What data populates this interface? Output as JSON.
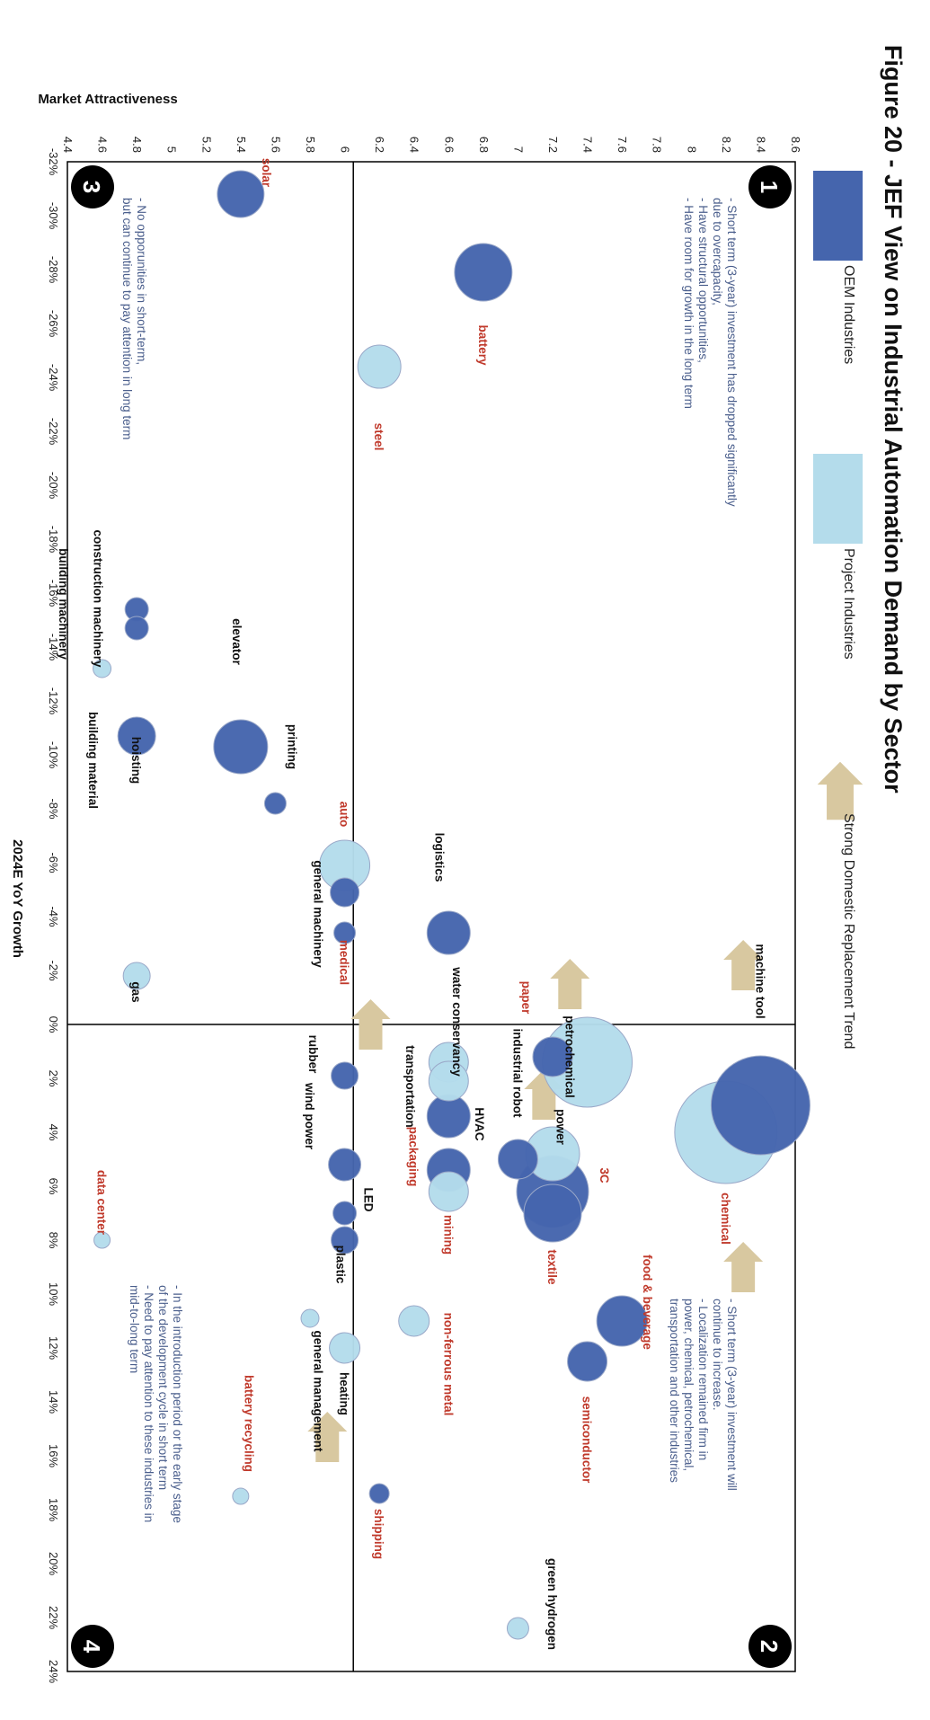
{
  "figure": {
    "title": "Figure 20 - JEF View on Industrial Automation Demand by Sector"
  },
  "legend": {
    "oem_label": "OEM Industries",
    "project_label": "Project Industries",
    "trend_label": "Strong Domestic Replacement Trend",
    "placement": "top"
  },
  "colors": {
    "oem": "#4565ad",
    "project": "#b4dceb",
    "red_label": "#c0392b",
    "note_text": "#4a5e8c",
    "arrow": "#d8c8a0"
  },
  "quadrants": [
    {
      "number": "1",
      "notes": [
        "- Short term (3-year) investment has dropped significantly",
        "due to overcapacity,",
        "- Have structural opportunities,",
        "- Have room for growth in the long term"
      ]
    },
    {
      "number": "2",
      "notes": [
        "- Short term (3-year) investment will",
        "continue to increase.",
        "- Localization remained firm in",
        "power, chemical, petrochemical,",
        "transportation and other industries"
      ]
    },
    {
      "number": "3",
      "notes": [
        "- No opporunities in short-term,",
        "but can continue to pay attention in long term"
      ]
    },
    {
      "number": "4",
      "notes": [
        "- In the introduction period or the early stage",
        "of the development cycle in short term",
        "-  Need to pay attention to these industries in",
        "mid-to-long term"
      ]
    }
  ],
  "chart_data": {
    "type": "scatter",
    "title": "Figure 20 - JEF View on Industrial Automation Demand by Sector",
    "xlabel": "2024E YoY Growth",
    "ylabel": "Market Attractiveness",
    "x_unit": "%",
    "xlim": [
      -32,
      24
    ],
    "ylim": [
      4.4,
      8.6
    ],
    "x_ticks": [
      "-32%",
      "-30%",
      "-28%",
      "-26%",
      "-24%",
      "-22%",
      "-20%",
      "-18%",
      "-16%",
      "-14%",
      "-12%",
      "-10%",
      "-8%",
      "-6%",
      "-4%",
      "-2%",
      "0%",
      "2%",
      "4%",
      "6%",
      "8%",
      "10%",
      "12%",
      "14%",
      "16%",
      "18%",
      "20%",
      "22%",
      "24%"
    ],
    "y_ticks": [
      "4.4",
      "4.6",
      "4.8",
      "5",
      "5.2",
      "5.4",
      "5.6",
      "5.8",
      "6",
      "6.2",
      "6.4",
      "6.6",
      "6.8",
      "7",
      "7.2",
      "7.4",
      "7.6",
      "7.8",
      "8",
      "8.2",
      "8.4",
      "8.6"
    ],
    "quadrant_dividers": {
      "x": 0,
      "y": 6.05
    },
    "grid": false,
    "series": [
      {
        "name": "OEM Industries",
        "color": "#4565ad",
        "points": [
          {
            "label": "solar",
            "x": -30.8,
            "y": 5.4,
            "r": 26,
            "emph": true,
            "lx": -31.6,
            "ly": 5.55
          },
          {
            "label": "battery",
            "x": -27.9,
            "y": 6.8,
            "r": 32,
            "emph": true,
            "lx": -25.2,
            "ly": 6.8
          },
          {
            "label": "construction machinery",
            "x": -15.4,
            "y": 4.8,
            "r": 13,
            "emph": false,
            "lx": -15.8,
            "ly": 4.58
          },
          {
            "label": "building machinery",
            "x": -14.7,
            "y": 4.8,
            "r": 13,
            "emph": false,
            "lx": -15.6,
            "ly": 4.38
          },
          {
            "label": "elevator",
            "x": -10.3,
            "y": 5.4,
            "r": 30,
            "emph": false,
            "lx": -14.2,
            "ly": 5.38
          },
          {
            "label": "hoisting",
            "x": -10.7,
            "y": 4.8,
            "r": 21,
            "emph": false,
            "lx": -9.8,
            "ly": 4.8
          },
          {
            "label": "printing",
            "x": -8.2,
            "y": 5.6,
            "r": 12,
            "emph": false,
            "lx": -10.3,
            "ly": 5.7
          },
          {
            "label": "general machinery",
            "x": -4.9,
            "y": 6.0,
            "r": 16,
            "emph": false,
            "lx": -4.1,
            "ly": 5.85
          },
          {
            "label": "",
            "x": -3.4,
            "y": 6.0,
            "r": 12,
            "emph": false,
            "lx": 0,
            "ly": 0
          },
          {
            "label": "logistics",
            "x": -3.4,
            "y": 6.6,
            "r": 24,
            "emph": false,
            "lx": -6.2,
            "ly": 6.55
          },
          {
            "label": "industrial robot",
            "x": 1.2,
            "y": 7.2,
            "r": 22,
            "emph": false,
            "lx": 1.8,
            "ly": 7.0
          },
          {
            "label": "rubber",
            "x": 1.9,
            "y": 6.0,
            "r": 15,
            "emph": false,
            "lx": 1.1,
            "ly": 5.82
          },
          {
            "label": "HVAC",
            "x": 3.4,
            "y": 6.6,
            "r": 24,
            "emph": false,
            "lx": 3.7,
            "ly": 6.78
          },
          {
            "label": "",
            "x": 5.0,
            "y": 7.0,
            "r": 22,
            "emph": false,
            "lx": 0,
            "ly": 0
          },
          {
            "label": "packaging",
            "x": 5.4,
            "y": 6.6,
            "r": 24,
            "emph": true,
            "lx": 4.9,
            "ly": 6.4
          },
          {
            "label": "wind power",
            "x": 5.2,
            "y": 6.0,
            "r": 18,
            "emph": false,
            "lx": 3.4,
            "ly": 5.8
          },
          {
            "label": "textile",
            "x": 7.0,
            "y": 7.2,
            "r": 32,
            "emph": true,
            "lx": 9.0,
            "ly": 7.2
          },
          {
            "label": "3C",
            "x": 6.2,
            "y": 7.2,
            "r": 40,
            "emph": true,
            "lx": 5.6,
            "ly": 7.5
          },
          {
            "label": "LED",
            "x": 7.0,
            "y": 6.0,
            "r": 13,
            "emph": false,
            "lx": 6.5,
            "ly": 6.14
          },
          {
            "label": "plastic",
            "x": 8.0,
            "y": 6.0,
            "r": 15,
            "emph": false,
            "lx": 8.9,
            "ly": 5.98
          },
          {
            "label": "chemical",
            "x": 3.0,
            "y": 8.4,
            "r": 55,
            "emph": true,
            "lx": 7.2,
            "ly": 8.2
          },
          {
            "label": "food & beverage",
            "x": 11.0,
            "y": 7.6,
            "r": 28,
            "emph": true,
            "lx": 10.3,
            "ly": 7.75
          },
          {
            "label": "semiconductor",
            "x": 12.5,
            "y": 7.4,
            "r": 22,
            "emph": true,
            "lx": 15.4,
            "ly": 7.4
          },
          {
            "label": "shipping",
            "x": 17.4,
            "y": 6.2,
            "r": 11,
            "emph": true,
            "lx": 18.9,
            "ly": 6.2
          }
        ]
      },
      {
        "name": "Project Industries",
        "color": "#b4dceb",
        "points": [
          {
            "label": "steel",
            "x": -24.4,
            "y": 6.2,
            "r": 24,
            "emph": true,
            "lx": -21.8,
            "ly": 6.2
          },
          {
            "label": "auto",
            "x": -5.9,
            "y": 6.0,
            "r": 28,
            "emph": true,
            "lx": -7.8,
            "ly": 6.0
          },
          {
            "label": "medical",
            "x": -3.0,
            "y": 6.05,
            "r": 0,
            "emph": true,
            "lx": -2.3,
            "ly": 6.0
          },
          {
            "label": "building material",
            "x": -13.2,
            "y": 4.6,
            "r": 10,
            "emph": false,
            "lx": -9.8,
            "ly": 4.55
          },
          {
            "label": "gas",
            "x": -1.8,
            "y": 4.8,
            "r": 15,
            "emph": false,
            "lx": -1.2,
            "ly": 4.8
          },
          {
            "label": "machine tool",
            "x": -1.6,
            "y": 8.5,
            "r": 0,
            "emph": false,
            "lx": -1.6,
            "ly": 8.4
          },
          {
            "label": "paper",
            "x": -1.0,
            "y": 7.2,
            "r": 0,
            "emph": true,
            "lx": -1.0,
            "ly": 7.05
          },
          {
            "label": "petrochemical",
            "x": 1.4,
            "y": 7.4,
            "r": 50,
            "emph": false,
            "lx": 1.2,
            "ly": 7.3
          },
          {
            "label": "water conservancy",
            "x": 1.4,
            "y": 6.6,
            "r": 22,
            "emph": false,
            "lx": -0.1,
            "ly": 6.65
          },
          {
            "label": "transportation",
            "x": 2.1,
            "y": 6.6,
            "r": 22,
            "emph": false,
            "lx": 2.3,
            "ly": 6.38
          },
          {
            "label": "power",
            "x": 4.8,
            "y": 7.2,
            "r": 30,
            "emph": false,
            "lx": 3.8,
            "ly": 7.25
          },
          {
            "label": "mining",
            "x": 6.2,
            "y": 6.6,
            "r": 22,
            "emph": true,
            "lx": 7.8,
            "ly": 6.6
          },
          {
            "label": "non-ferrous metal",
            "x": 11.0,
            "y": 6.4,
            "r": 17,
            "emph": true,
            "lx": 12.6,
            "ly": 6.6
          },
          {
            "label": "general management",
            "x": 10.9,
            "y": 5.8,
            "r": 10,
            "emph": false,
            "lx": 13.6,
            "ly": 5.85
          },
          {
            "label": "heating",
            "x": 12.0,
            "y": 6.0,
            "r": 17,
            "emph": false,
            "lx": 13.7,
            "ly": 6.0
          },
          {
            "label": "battery recycling",
            "x": 17.5,
            "y": 5.4,
            "r": 9,
            "emph": true,
            "lx": 14.8,
            "ly": 5.45
          },
          {
            "label": "data center",
            "x": 8.0,
            "y": 4.6,
            "r": 9,
            "emph": true,
            "lx": 6.6,
            "ly": 4.6
          },
          {
            "label": "green hydrogen",
            "x": 22.4,
            "y": 7.0,
            "r": 12,
            "emph": false,
            "lx": 21.5,
            "ly": 7.2
          },
          {
            "label": "",
            "x": 4.0,
            "y": 8.2,
            "r": 57,
            "emph": false,
            "lx": 0,
            "ly": 0
          }
        ]
      }
    ],
    "arrows": [
      {
        "x": -2.2,
        "y": 8.3
      },
      {
        "x": -1.5,
        "y": 7.3
      },
      {
        "x": 0.0,
        "y": 6.15
      },
      {
        "x": 2.6,
        "y": 7.15
      },
      {
        "x": 9.0,
        "y": 8.3
      },
      {
        "x": 15.3,
        "y": 5.9
      }
    ]
  }
}
